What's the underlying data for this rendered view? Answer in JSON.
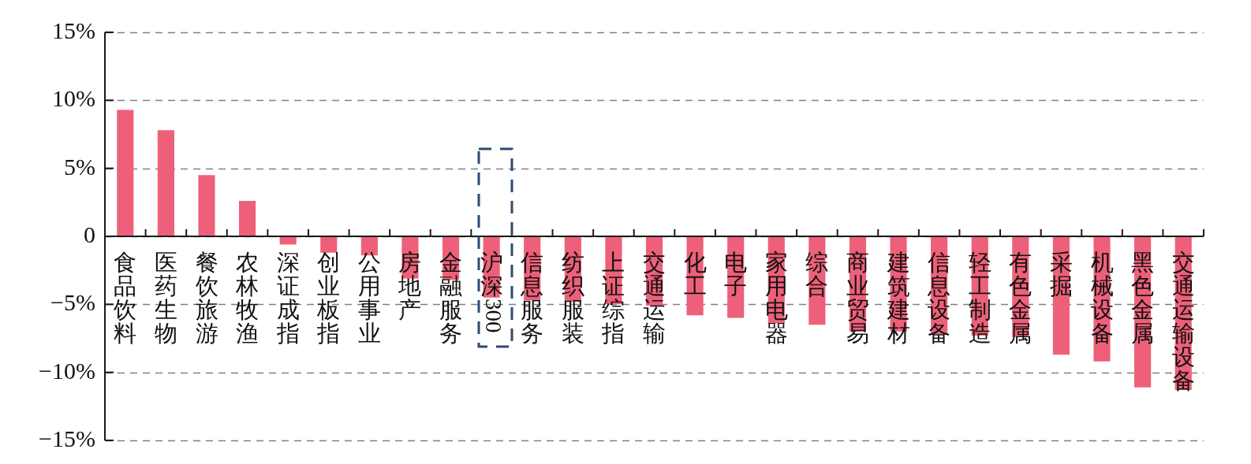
{
  "chart_data": {
    "type": "bar",
    "categories": [
      "食品饮料",
      "医药生物",
      "餐饮旅游",
      "农林牧渔",
      "深证成指",
      "创业板指",
      "公用事业",
      "房地产",
      "金融服务",
      "沪深300",
      "信息服务",
      "纺织服装",
      "上证综指",
      "交通运输",
      "化工",
      "电子",
      "家用电器",
      "综合",
      "商业贸易",
      "建筑建材",
      "信息设备",
      "轻工制造",
      "有色金属",
      "采掘",
      "机械设备",
      "黑色金属",
      "交通运输设备"
    ],
    "values": [
      9.3,
      7.8,
      4.5,
      2.6,
      -0.6,
      -1.2,
      -1.4,
      -3.1,
      -3.2,
      -4.5,
      -4.7,
      -4.8,
      -5.0,
      -5.1,
      -5.8,
      -6.0,
      -6.4,
      -6.5,
      -7.0,
      -7.0,
      -7.2,
      -7.3,
      -7.4,
      -8.7,
      -9.2,
      -11.1,
      -11.3
    ],
    "color": "#ee6079",
    "ylim": [
      -15,
      15
    ],
    "yticks": [
      {
        "value": -15,
        "label": "−15%"
      },
      {
        "value": -10,
        "label": "−10%"
      },
      {
        "value": -5,
        "label": "−5%"
      },
      0,
      {
        "value": 5,
        "label": "5%"
      },
      {
        "value": 10,
        "label": "10%"
      },
      {
        "value": 15,
        "label": "15%"
      }
    ],
    "grid": "y"
  }
}
